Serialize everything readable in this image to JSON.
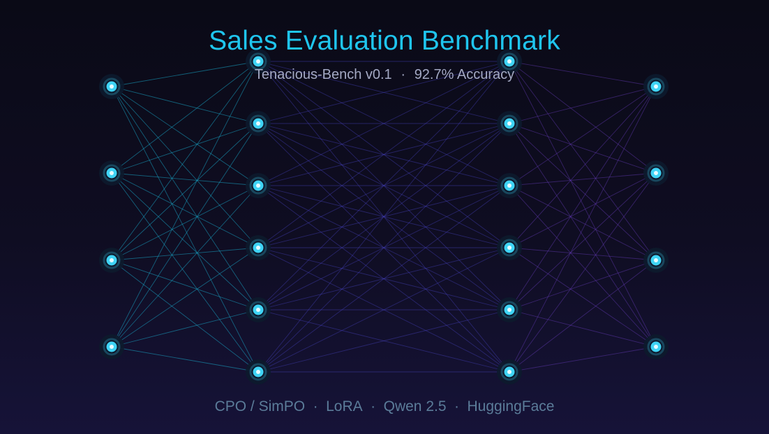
{
  "header": {
    "title": "Sales Evaluation Benchmark",
    "benchmark": "Tenacious-Bench v0.1",
    "separator": "·",
    "accuracy": "92.7% Accuracy"
  },
  "footer": {
    "separator": "·",
    "items": [
      "CPO / SimPO",
      "LoRA",
      "Qwen 2.5",
      "HuggingFace"
    ]
  },
  "network": {
    "layers": [
      4,
      6,
      6,
      4
    ],
    "colors": {
      "node_core": "#3fd4f5",
      "node_center": "#e6fbff",
      "node_halo": "#0d1a2c",
      "edge_cyan": "#1aa8c8",
      "edge_indigo": "#4b46c8",
      "edge_violet": "#6a3fc2"
    }
  }
}
